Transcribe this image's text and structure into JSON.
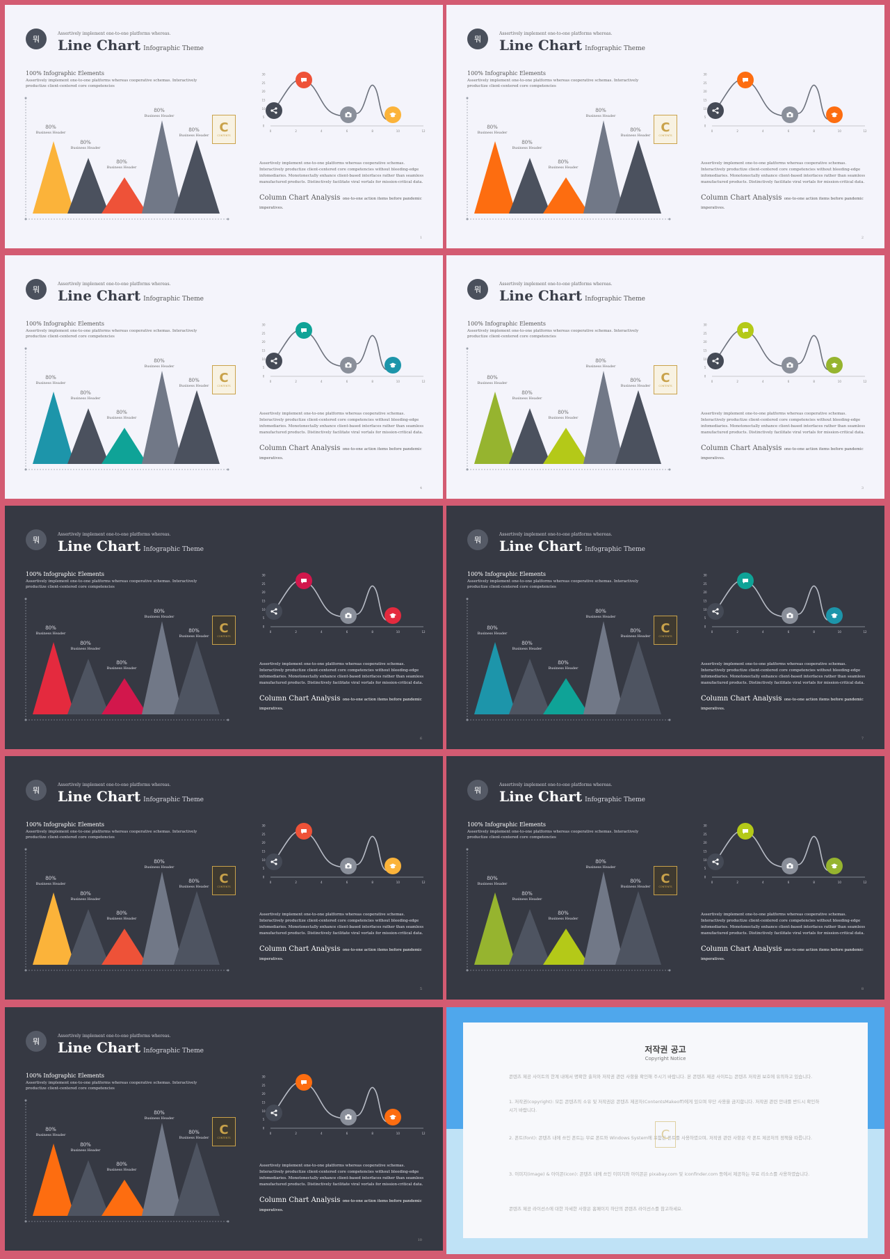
{
  "slide_text": {
    "logo": "뭐",
    "kicker": "Assertively implement one-to-one platforms whereas.",
    "title": "Line Chart",
    "subtitle": "Infographic Theme",
    "section_heading": "100% Infographic Elements",
    "section_text": "Assertively implement one-to-one platforms whereas cooperative schemas. Interactively productize client-centered core competencies",
    "peaks": [
      {
        "pct": "80%",
        "header": "Business Header"
      },
      {
        "pct": "80%",
        "header": "Business Header"
      },
      {
        "pct": "80%",
        "header": "Business Header"
      },
      {
        "pct": "80%",
        "header": "Business Header"
      },
      {
        "pct": "80%",
        "header": "Business Header"
      }
    ],
    "badge_letter": "C",
    "badge_text": "CONTENTS",
    "paragraph": "Assertively implement one-to-one platforms whereas cooperative schemas. Interactively productize client-centered core competencies without bleeding-edge infomediaries. Monotonectally enhance client-based interfaces rather than seamless manufactured products. Distinctively facilitate viral vortals for mission-critical data.",
    "analysis_title": "Column Chart Analysis",
    "analysis_text": "one-to-one action items before pandemic imperatives."
  },
  "chart_data": {
    "type": "line",
    "x_ticks": [
      "0",
      "2",
      "4",
      "6",
      "8",
      "10",
      "12"
    ],
    "y_ticks": [
      "0",
      "5",
      "10",
      "15",
      "20",
      "25",
      "30"
    ],
    "markers": [
      "share-icon",
      "message-icon",
      "camera-icon",
      "graduation-cap-icon"
    ]
  },
  "slides": [
    {
      "theme": "light",
      "page": "1",
      "accent1": "#fbb33a",
      "accent2": "#ee5238",
      "marker_top": "#ee5238",
      "marker_right": "#fbb33a"
    },
    {
      "theme": "light",
      "page": "2",
      "accent1": "#fd6d10",
      "accent2": "#fd6d10",
      "marker_top": "#fd6d10",
      "marker_right": "#fd6d10"
    },
    {
      "theme": "light",
      "page": "4",
      "accent1": "#1d95aa",
      "accent2": "#0fa397",
      "marker_top": "#0fa397",
      "marker_right": "#1d95aa"
    },
    {
      "theme": "light",
      "page": "3",
      "accent1": "#96b42f",
      "accent2": "#b4c918",
      "marker_top": "#b4c918",
      "marker_right": "#96b42f"
    },
    {
      "theme": "dark",
      "page": "6",
      "accent1": "#e42a3e",
      "accent2": "#d2174c",
      "marker_top": "#d2174c",
      "marker_right": "#e42a3e"
    },
    {
      "theme": "dark",
      "page": "7",
      "accent1": "#1d95aa",
      "accent2": "#0fa397",
      "marker_top": "#0fa397",
      "marker_right": "#1d95aa"
    },
    {
      "theme": "dark",
      "page": "5",
      "accent1": "#fbb33a",
      "accent2": "#ee5238",
      "marker_top": "#ee5238",
      "marker_right": "#fbb33a"
    },
    {
      "theme": "dark",
      "page": "8",
      "accent1": "#96b42f",
      "accent2": "#b4c918",
      "marker_top": "#b4c918",
      "marker_right": "#96b42f"
    },
    {
      "theme": "dark",
      "page": "10",
      "accent1": "#fd6d10",
      "accent2": "#fd6d10",
      "marker_top": "#fd6d10",
      "marker_right": "#fd6d10"
    }
  ],
  "colors": {
    "border": "#d35b72",
    "gray_mid": "#4b515e",
    "gray_light": "#717887",
    "gray_dark": "#4b515e"
  },
  "copyright": {
    "title": "저작권 공고",
    "subtitle": "Copyright Notice",
    "paragraphs": [
      "콘텐츠 제공 사이트의 한계 내에서 명확한 출처와 저작권 관련 사항을 확인해 주시기 바랍니다. 본 콘텐츠 제공 사이트는 콘텐츠 저작권 보호에 유의하고 있습니다.",
      "1. 저작권(copyright): 모든 콘텐츠의 소유 및 저작권은 콘텐츠 제공자(ContentsMakeoff)에게 있으며 무단 사용을 금지합니다. 저작권 관련 안내를 반드시 확인하시기 바랍니다.",
      "2. 폰트(font): 콘텐츠 내에 쓰인 폰트는 무료 폰트와 Windows System에 포함된 폰트를 사용하였으며, 저작권 관련 사항은 각 폰트 제공처의 정책을 따릅니다.",
      "3. 이미지(image) & 아이콘(icon): 콘텐츠 내에 쓰인 이미지와 아이콘은 pixabay.com 및 iconfinder.com 등에서 제공하는 무료 리소스를 사용하였습니다.",
      "콘텐츠 제공 라이선스에 대한 자세한 사항은 홈페이지 하단의 콘텐츠 라이선스를 참고하세요."
    ]
  }
}
